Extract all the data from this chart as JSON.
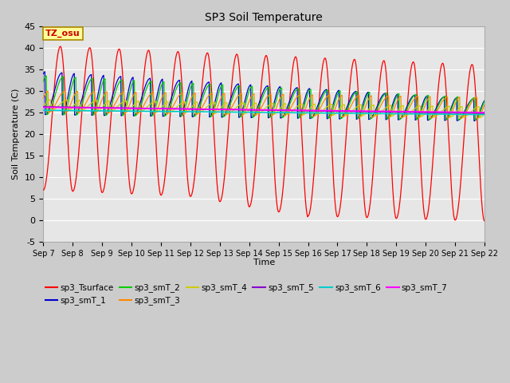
{
  "title": "SP3 Soil Temperature",
  "ylabel": "Soil Temperature (C)",
  "xlabel": "Time",
  "tz_label": "TZ_osu",
  "ylim": [
    -5,
    45
  ],
  "yticks": [
    -5,
    0,
    5,
    10,
    15,
    20,
    25,
    30,
    35,
    40,
    45
  ],
  "x_tick_labels": [
    "Sep 7",
    "Sep 8",
    "Sep 9",
    "Sep 10",
    "Sep 11",
    "Sep 12",
    "Sep 13",
    "Sep 14",
    "Sep 15",
    "Sep 16",
    "Sep 17",
    "Sep 18",
    "Sep 19",
    "Sep 20",
    "Sep 21",
    "Sep 22"
  ],
  "fig_bg": "#cccccc",
  "plot_bg": "#e6e6e6",
  "series_colors": {
    "sp3_Tsurface": "#ff0000",
    "sp3_smT_1": "#0000cc",
    "sp3_smT_2": "#00cc00",
    "sp3_smT_3": "#ff8800",
    "sp3_smT_4": "#cccc00",
    "sp3_smT_5": "#8800cc",
    "sp3_smT_6": "#00cccc",
    "sp3_smT_7": "#ff00ff"
  }
}
